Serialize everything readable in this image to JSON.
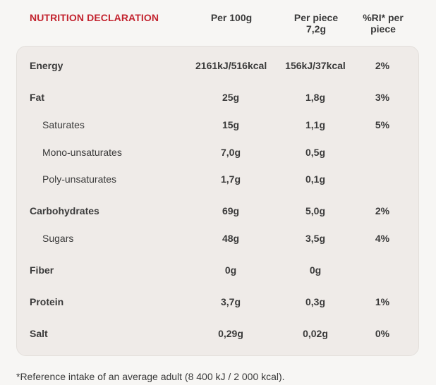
{
  "header": {
    "title": "NUTRITION DECLARATION",
    "col_per_100g": "Per 100g",
    "col_per_piece": "Per piece\n7,2g",
    "col_ri": "%RI* per\npiece"
  },
  "rows": [
    {
      "name": "Energy",
      "type": "main",
      "per100": "2161kJ/516kcal",
      "perpiece": "156kJ/37kcal",
      "ri": "2%"
    },
    {
      "name": "Fat",
      "type": "main",
      "per100": "25g",
      "perpiece": "1,8g",
      "ri": "3%"
    },
    {
      "name": "Saturates",
      "type": "sub",
      "per100": "15g",
      "perpiece": "1,1g",
      "ri": "5%"
    },
    {
      "name": "Mono-unsaturates",
      "type": "sub",
      "per100": "7,0g",
      "perpiece": "0,5g",
      "ri": ""
    },
    {
      "name": "Poly-unsaturates",
      "type": "sub",
      "per100": "1,7g",
      "perpiece": "0,1g",
      "ri": ""
    },
    {
      "name": "Carbohydrates",
      "type": "main",
      "per100": "69g",
      "perpiece": "5,0g",
      "ri": "2%"
    },
    {
      "name": "Sugars",
      "type": "sub",
      "per100": "48g",
      "perpiece": "3,5g",
      "ri": "4%"
    },
    {
      "name": "Fiber",
      "type": "main",
      "per100": "0g",
      "perpiece": "0g",
      "ri": ""
    },
    {
      "name": "Protein",
      "type": "main",
      "per100": "3,7g",
      "perpiece": "0,3g",
      "ri": "1%"
    },
    {
      "name": "Salt",
      "type": "main",
      "per100": "0,29g",
      "perpiece": "0,02g",
      "ri": "0%"
    }
  ],
  "footnote": "*Reference intake of an average adult (8 400 kJ / 2 000 kcal).",
  "colors": {
    "title": "#c3242f",
    "panel": "#efebe8",
    "background": "#f7f6f4",
    "text": "#3a3a3a"
  }
}
